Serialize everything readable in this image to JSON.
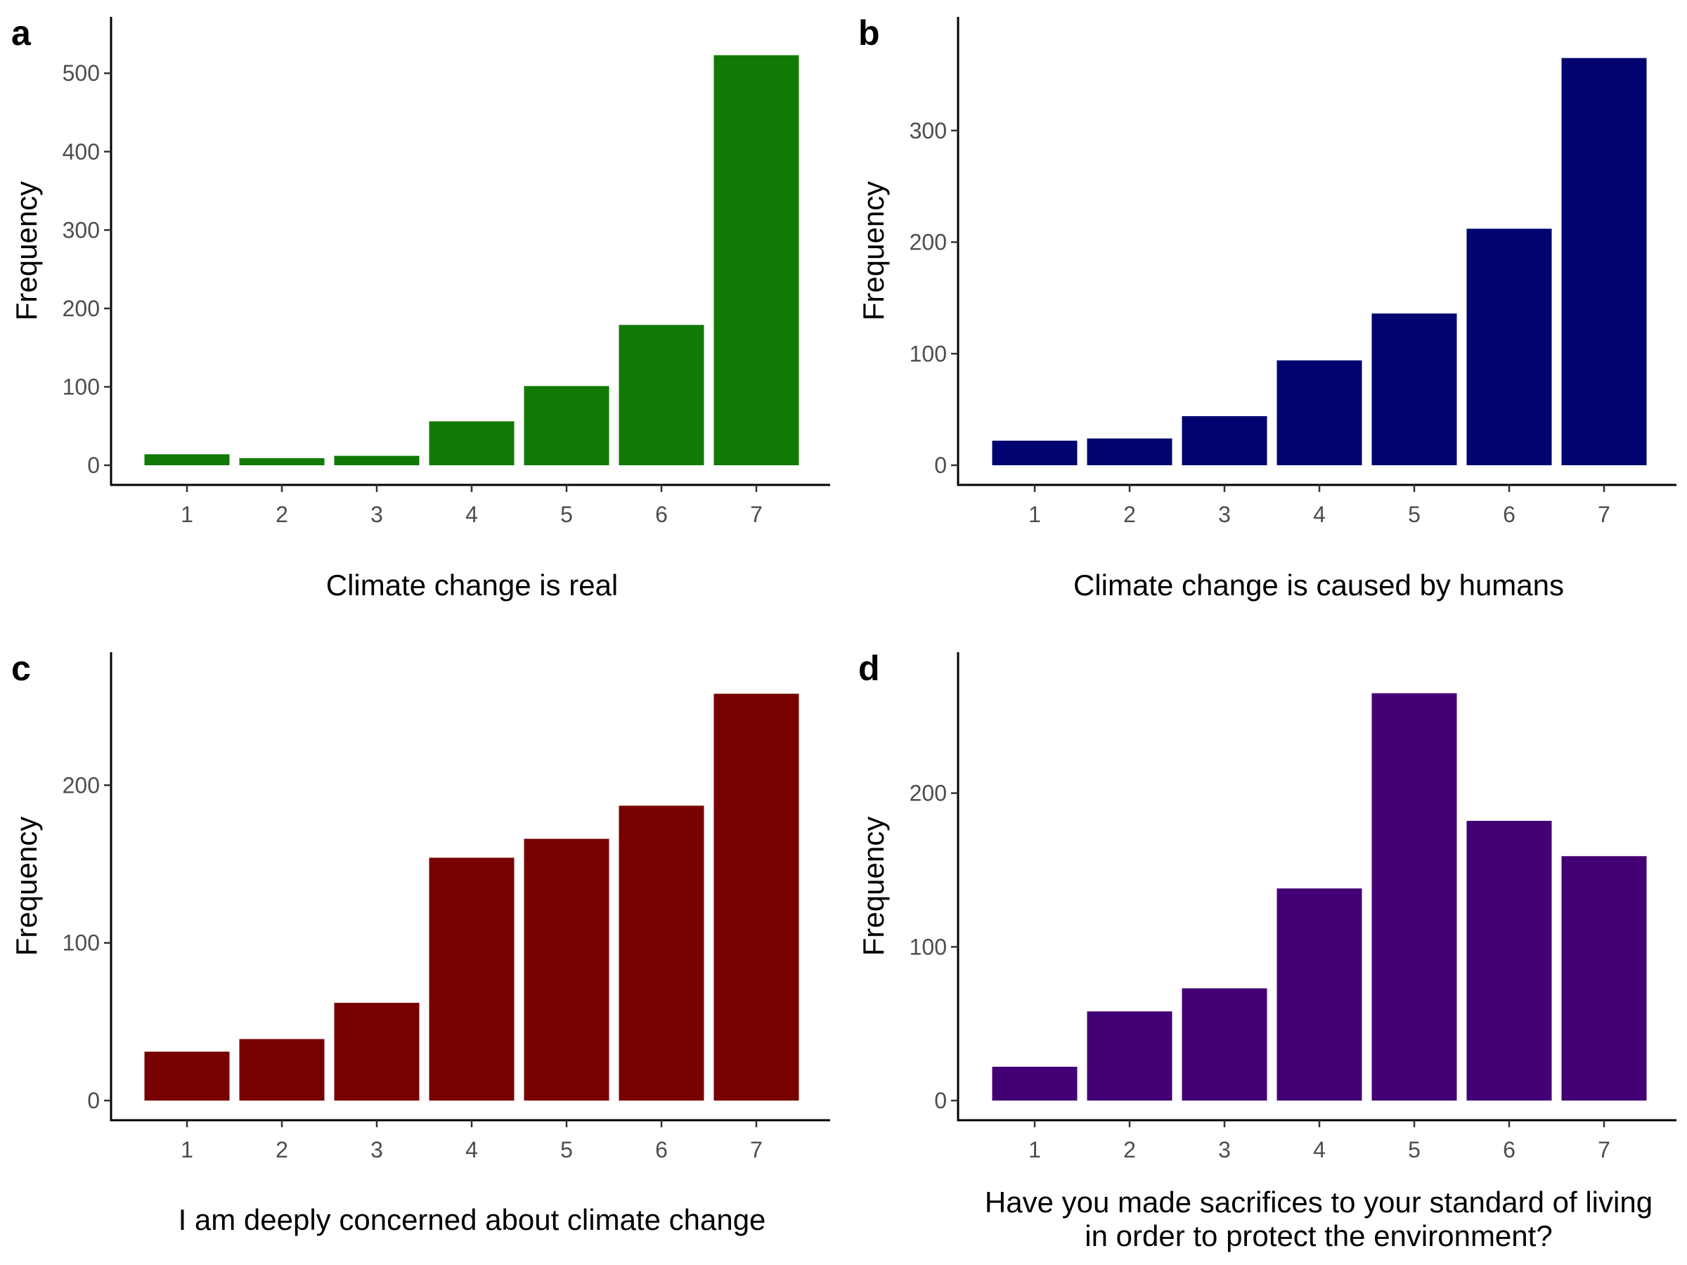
{
  "chart_data": [
    {
      "type": "bar",
      "panel": "a",
      "color": "#117A04",
      "categories": [
        "1",
        "2",
        "3",
        "4",
        "5",
        "6",
        "7"
      ],
      "values": [
        14,
        9,
        12,
        56,
        101,
        179,
        523
      ],
      "ylabel": "Frequency",
      "xlabel": [
        "Climate change is real"
      ],
      "ylim": [
        0,
        545
      ],
      "yticks": [
        0,
        100,
        200,
        300,
        400,
        500
      ],
      "grid": false,
      "legend": "none"
    },
    {
      "type": "bar",
      "panel": "b",
      "color": "#000370",
      "categories": [
        "1",
        "2",
        "3",
        "4",
        "5",
        "6",
        "7"
      ],
      "values": [
        22,
        24,
        44,
        94,
        136,
        212,
        365
      ],
      "ylabel": "Frequency",
      "xlabel": [
        "Climate change is caused by humans"
      ],
      "ylim": [
        0,
        383
      ],
      "yticks": [
        0,
        100,
        200,
        300
      ],
      "grid": false,
      "legend": "none"
    },
    {
      "type": "bar",
      "panel": "c",
      "color": "#770000",
      "categories": [
        "1",
        "2",
        "3",
        "4",
        "5",
        "6",
        "7"
      ],
      "values": [
        31,
        39,
        62,
        154,
        166,
        187,
        258
      ],
      "ylabel": "Frequency",
      "xlabel": [
        "I am deeply concerned about climate change"
      ],
      "ylim": [
        0,
        271
      ],
      "yticks": [
        0,
        100,
        200
      ],
      "grid": false,
      "legend": "none"
    },
    {
      "type": "bar",
      "panel": "d",
      "color": "#430075",
      "categories": [
        "1",
        "2",
        "3",
        "4",
        "5",
        "6",
        "7"
      ],
      "values": [
        22,
        58,
        73,
        138,
        265,
        182,
        159
      ],
      "ylabel": "Frequency",
      "xlabel": [
        "Have you made sacrifices to your standard of living",
        "in order to protect the environment?"
      ],
      "ylim": [
        0,
        278
      ],
      "yticks": [
        0,
        100,
        200
      ],
      "grid": false,
      "legend": "none"
    }
  ]
}
